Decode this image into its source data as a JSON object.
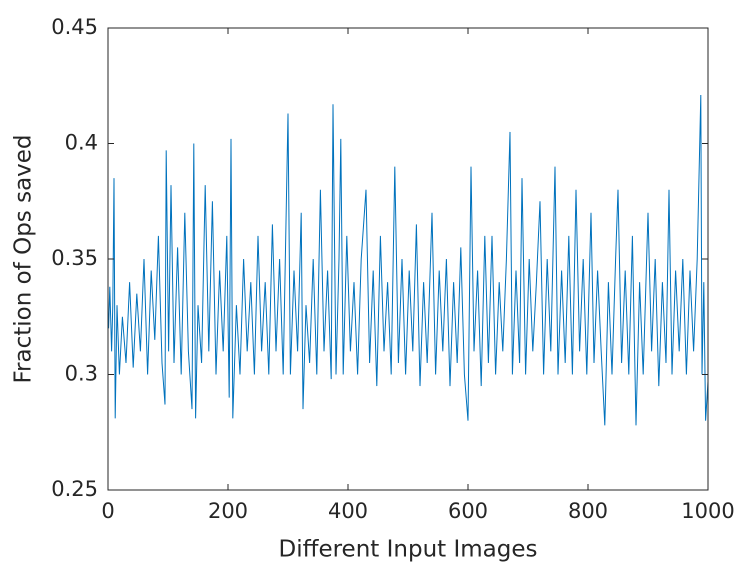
{
  "chart_data": {
    "type": "line",
    "x_label": "Different Input Images",
    "y_label": "Fraction of Ops saved",
    "xlim": [
      0,
      1000
    ],
    "xticks": [
      0,
      200,
      400,
      600,
      800,
      1000
    ],
    "ylim": [
      0.25,
      0.45
    ],
    "yticks": [
      0.25,
      0.3,
      0.35,
      0.4,
      0.45
    ],
    "grid": false,
    "series": [
      {
        "color": "#0072bd",
        "x": [
          1,
          3,
          6,
          8,
          10,
          12,
          15,
          19,
          24,
          30,
          36,
          42,
          48,
          54,
          60,
          66,
          72,
          78,
          84,
          90,
          95,
          97,
          101,
          105,
          110,
          116,
          122,
          128,
          134,
          140,
          143,
          146,
          150,
          156,
          162,
          168,
          174,
          180,
          186,
          192,
          198,
          202,
          205,
          208,
          214,
          220,
          226,
          232,
          238,
          244,
          250,
          256,
          262,
          268,
          274,
          280,
          286,
          292,
          300,
          304,
          310,
          316,
          322,
          325,
          330,
          336,
          342,
          348,
          354,
          360,
          366,
          372,
          375,
          380,
          385,
          388,
          392,
          398,
          404,
          410,
          416,
          422,
          430,
          436,
          442,
          448,
          454,
          460,
          466,
          472,
          478,
          484,
          490,
          496,
          502,
          508,
          514,
          520,
          526,
          532,
          540,
          546,
          552,
          558,
          564,
          570,
          576,
          582,
          588,
          594,
          600,
          605,
          610,
          616,
          622,
          628,
          634,
          640,
          646,
          652,
          658,
          664,
          670,
          674,
          680,
          686,
          690,
          696,
          702,
          708,
          714,
          720,
          726,
          732,
          738,
          745,
          750,
          756,
          762,
          768,
          774,
          780,
          786,
          792,
          798,
          805,
          810,
          816,
          822,
          828,
          834,
          840,
          846,
          850,
          856,
          862,
          868,
          874,
          880,
          886,
          892,
          900,
          906,
          912,
          918,
          924,
          930,
          935,
          940,
          946,
          952,
          958,
          964,
          970,
          976,
          982,
          988,
          990,
          993,
          996,
          1000
        ],
        "values": [
          0.32,
          0.338,
          0.31,
          0.33,
          0.385,
          0.281,
          0.33,
          0.3,
          0.325,
          0.305,
          0.34,
          0.303,
          0.335,
          0.31,
          0.35,
          0.3,
          0.345,
          0.315,
          0.36,
          0.305,
          0.287,
          0.397,
          0.31,
          0.382,
          0.305,
          0.355,
          0.3,
          0.37,
          0.31,
          0.285,
          0.4,
          0.281,
          0.33,
          0.305,
          0.382,
          0.31,
          0.375,
          0.3,
          0.345,
          0.31,
          0.36,
          0.29,
          0.402,
          0.281,
          0.33,
          0.3,
          0.35,
          0.31,
          0.34,
          0.3,
          0.36,
          0.31,
          0.34,
          0.3,
          0.365,
          0.31,
          0.35,
          0.3,
          0.413,
          0.3,
          0.345,
          0.31,
          0.37,
          0.285,
          0.33,
          0.305,
          0.35,
          0.3,
          0.38,
          0.31,
          0.345,
          0.298,
          0.417,
          0.3,
          0.35,
          0.402,
          0.3,
          0.36,
          0.31,
          0.34,
          0.3,
          0.35,
          0.38,
          0.305,
          0.345,
          0.295,
          0.36,
          0.31,
          0.34,
          0.3,
          0.39,
          0.305,
          0.35,
          0.3,
          0.345,
          0.31,
          0.365,
          0.295,
          0.34,
          0.305,
          0.37,
          0.3,
          0.345,
          0.31,
          0.35,
          0.295,
          0.34,
          0.305,
          0.355,
          0.3,
          0.28,
          0.39,
          0.31,
          0.345,
          0.295,
          0.36,
          0.305,
          0.36,
          0.3,
          0.34,
          0.31,
          0.35,
          0.405,
          0.3,
          0.345,
          0.305,
          0.385,
          0.3,
          0.35,
          0.31,
          0.34,
          0.375,
          0.3,
          0.35,
          0.31,
          0.39,
          0.3,
          0.345,
          0.305,
          0.36,
          0.3,
          0.38,
          0.31,
          0.35,
          0.3,
          0.37,
          0.305,
          0.345,
          0.31,
          0.278,
          0.34,
          0.3,
          0.35,
          0.38,
          0.305,
          0.345,
          0.3,
          0.36,
          0.278,
          0.34,
          0.3,
          0.37,
          0.31,
          0.35,
          0.295,
          0.34,
          0.305,
          0.38,
          0.3,
          0.345,
          0.31,
          0.35,
          0.3,
          0.345,
          0.31,
          0.35,
          0.421,
          0.3,
          0.34,
          0.28,
          0.297
        ]
      }
    ]
  }
}
